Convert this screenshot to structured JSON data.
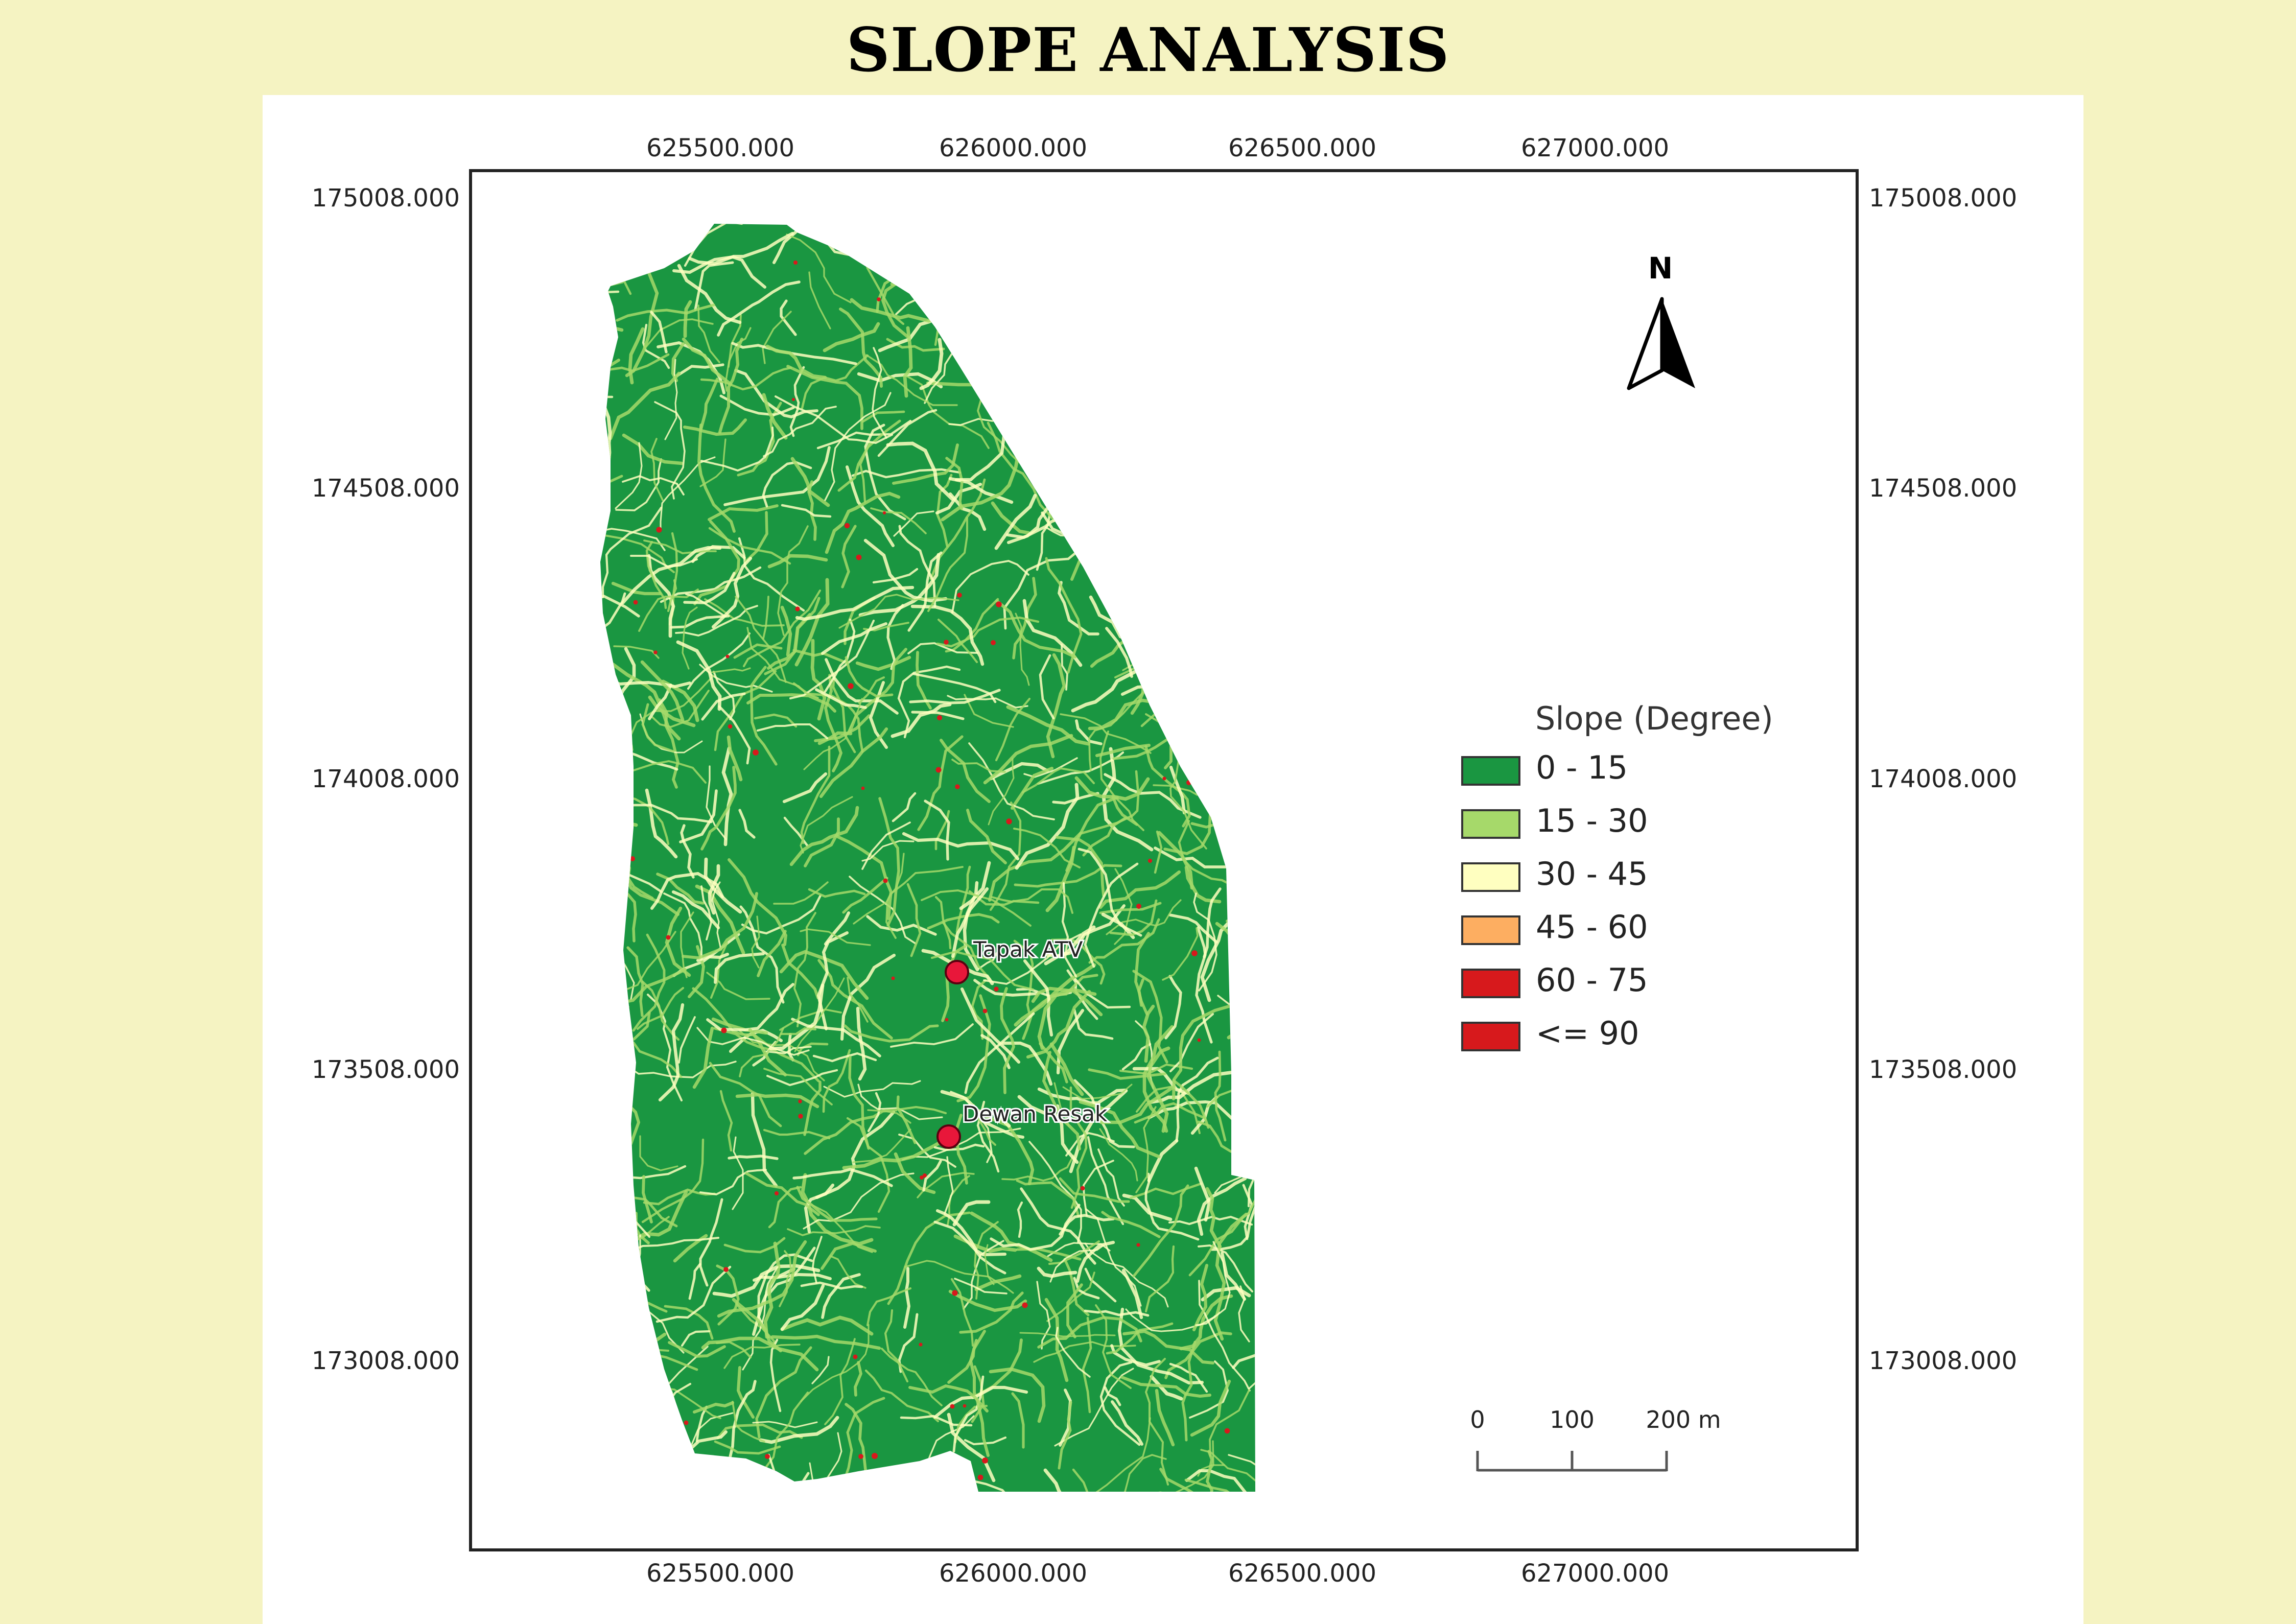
{
  "title": "SLOPE ANALYSIS",
  "axes": {
    "x_ticks": [
      "625500.000",
      "626000.000",
      "626500.000",
      "627000.000"
    ],
    "y_ticks": [
      "175008.000",
      "174508.000",
      "174008.000",
      "173508.000",
      "173008.000"
    ]
  },
  "north_arrow": {
    "label": "N",
    "icon": "north-arrow-icon"
  },
  "legend": {
    "title": "Slope (Degree)",
    "items": [
      {
        "label": " 0 - 15",
        "color": "#1a9641"
      },
      {
        "label": "15 - 30",
        "color": "#a6d96a"
      },
      {
        "label": "30 - 45",
        "color": "#ffffc0"
      },
      {
        "label": "45 - 60",
        "color": "#fdae61"
      },
      {
        "label": "60 - 75",
        "color": "#d7191c"
      },
      {
        "label": "<= 90",
        "color": "#d7191c"
      }
    ]
  },
  "points": [
    {
      "label": "Tapak ATV",
      "color": "#e8173a"
    },
    {
      "label": "Dewan Resak",
      "color": "#e8173a"
    }
  ],
  "scale_bar": {
    "labels": [
      "0",
      "100",
      "200 m"
    ]
  }
}
